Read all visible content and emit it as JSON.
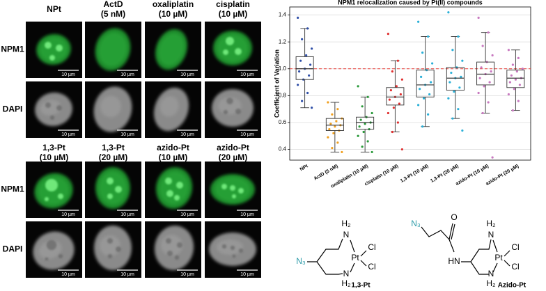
{
  "figure": {
    "top": {
      "columns": [
        [
          "NPt"
        ],
        [
          "ActD",
          "(5 nM)"
        ],
        [
          "oxaliplatin",
          "(10 µM)"
        ],
        [
          "cisplatin",
          "(10 µM)"
        ]
      ]
    },
    "bottom": {
      "columns": [
        [
          "1,3-Pt",
          "(10 µM)"
        ],
        [
          "1,3-Pt",
          "(20 µM)"
        ],
        [
          "azido-Pt",
          "(10 µM)"
        ],
        [
          "azido-Pt",
          "(20 µM)"
        ]
      ]
    },
    "rows": [
      "NPM1",
      "DAPI"
    ],
    "scale_bar": "10 µm"
  },
  "chart_data": {
    "type": "box",
    "title": "NPM1 relocalization caused by Pt(II) compounds",
    "y_label": "Coefficient of Variation",
    "categories": [
      "NPt",
      "ActD (5 nM)",
      "oxaliplatin (10 µM)",
      "cisplatin (10 µM)",
      "1,3-Pt (10 µM)",
      "1,3-Pt (20 µM)",
      "azido-Pt (10 µM)",
      "azido-Pt (20 µM)"
    ],
    "ylim": [
      0.32,
      1.46
    ],
    "yticks": [
      0.4,
      0.6,
      0.8,
      {
        "value": 1.0,
        "label": "1.0"
      },
      1.2,
      1.4
    ],
    "grid": true,
    "reference_line": {
      "value": 1.0,
      "color": "#e8403a"
    },
    "boxes": [
      {
        "color": "#2f4fa8",
        "min": 0.71,
        "q1": 0.92,
        "median": 1.0,
        "q3": 1.09,
        "max": 1.3,
        "points": [
          1.38,
          1.3,
          1.22,
          1.15,
          1.1,
          1.06,
          1.03,
          1.0,
          0.98,
          0.95,
          0.92,
          0.88,
          0.82,
          0.76,
          0.71
        ]
      },
      {
        "color": "#f0a020",
        "min": 0.38,
        "q1": 0.54,
        "median": 0.58,
        "q3": 0.63,
        "max": 0.75,
        "points": [
          0.75,
          0.7,
          0.66,
          0.63,
          0.61,
          0.59,
          0.58,
          0.57,
          0.55,
          0.54,
          0.52,
          0.49,
          0.45,
          0.41,
          0.38
        ]
      },
      {
        "color": "#2a9a3a",
        "min": 0.38,
        "q1": 0.55,
        "median": 0.6,
        "q3": 0.64,
        "max": 0.79,
        "points": [
          0.87,
          0.79,
          0.72,
          0.67,
          0.64,
          0.62,
          0.6,
          0.59,
          0.57,
          0.55,
          0.53,
          0.5,
          0.46,
          0.42,
          0.38
        ]
      },
      {
        "color": "#e03030",
        "min": 0.53,
        "q1": 0.73,
        "median": 0.79,
        "q3": 0.86,
        "max": 1.06,
        "points": [
          1.26,
          1.06,
          0.98,
          0.92,
          0.87,
          0.84,
          0.81,
          0.79,
          0.77,
          0.74,
          0.71,
          0.67,
          0.6,
          0.53,
          0.4
        ]
      },
      {
        "color": "#2ab0d8",
        "min": 0.57,
        "q1": 0.79,
        "median": 0.88,
        "q3": 0.99,
        "max": 1.24,
        "points": [
          1.35,
          1.24,
          1.12,
          1.04,
          0.99,
          0.94,
          0.9,
          0.88,
          0.85,
          0.81,
          0.78,
          0.73,
          0.66,
          0.57
        ]
      },
      {
        "color": "#2ab0d8",
        "min": 0.63,
        "q1": 0.84,
        "median": 0.93,
        "q3": 1.01,
        "max": 1.24,
        "points": [
          1.42,
          1.24,
          1.14,
          1.06,
          1.01,
          0.97,
          0.94,
          0.93,
          0.9,
          0.86,
          0.83,
          0.78,
          0.7,
          0.63,
          0.54
        ]
      },
      {
        "color": "#c878c0",
        "min": 0.67,
        "q1": 0.88,
        "median": 0.96,
        "q3": 1.05,
        "max": 1.27,
        "points": [
          1.38,
          1.27,
          1.17,
          1.1,
          1.05,
          1.01,
          0.98,
          0.96,
          0.93,
          0.9,
          0.87,
          0.82,
          0.75,
          0.67,
          0.34
        ]
      },
      {
        "color": "#c878c0",
        "min": 0.69,
        "q1": 0.86,
        "median": 0.93,
        "q3": 0.99,
        "max": 1.14,
        "points": [
          1.14,
          1.08,
          1.03,
          1.0,
          0.98,
          0.95,
          0.93,
          0.92,
          0.9,
          0.88,
          0.85,
          0.81,
          0.76,
          0.69
        ]
      }
    ]
  },
  "structures": [
    {
      "name": "1,3-Pt",
      "azide": "N₃",
      "amine_top": "N",
      "h_top": "H₂",
      "metal": "Pt",
      "cl_1": "Cl",
      "cl_2": "Cl",
      "amine_bottom": "N",
      "h_bottom": "H₂"
    },
    {
      "name": "Azido-Pt",
      "azide": "N₃",
      "oxygen": "O",
      "amide": "HN",
      "amine_top": "N",
      "h_top": "H₂",
      "metal": "Pt",
      "cl_1": "Cl",
      "cl_2": "Cl",
      "amine_bottom": "N",
      "h_bottom": "H₂"
    }
  ]
}
